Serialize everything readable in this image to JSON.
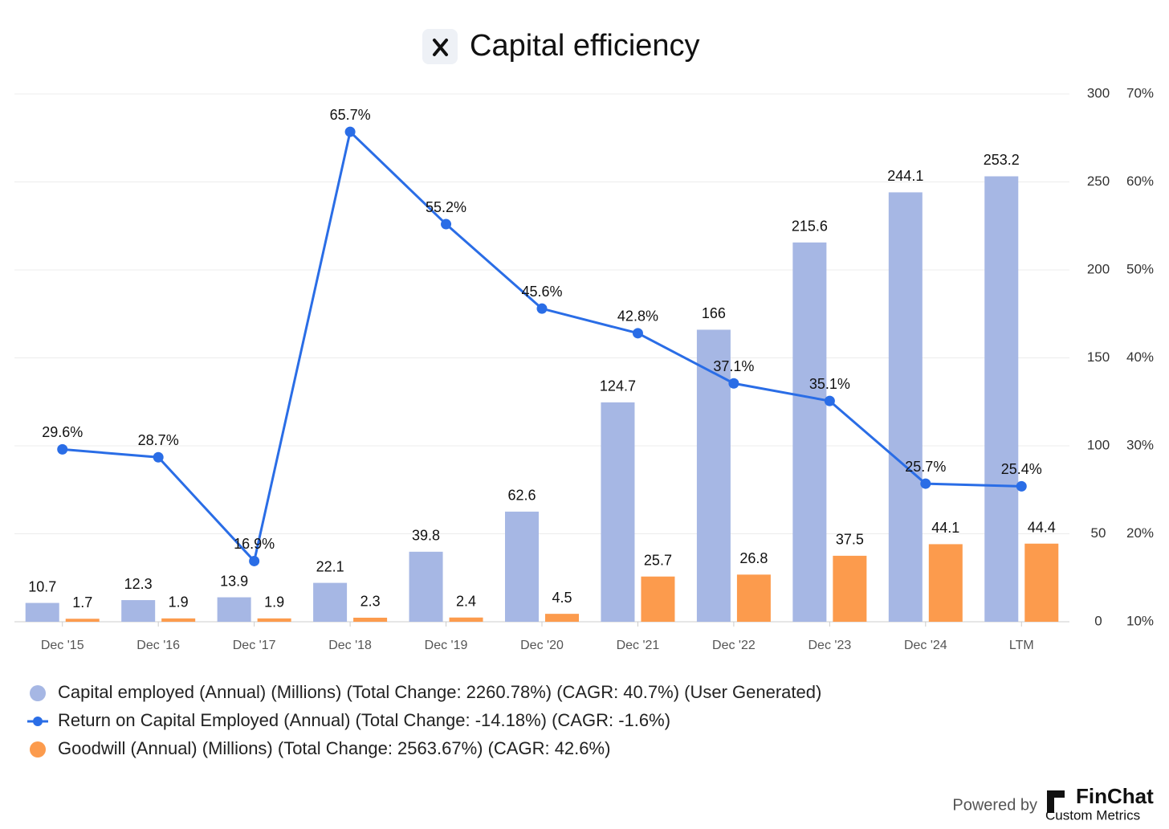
{
  "chart_data": {
    "type": "combo",
    "title": "Capital efficiency",
    "categories": [
      "Dec '15",
      "Dec '16",
      "Dec '17",
      "Dec '18",
      "Dec '19",
      "Dec '20",
      "Dec '21",
      "Dec '22",
      "Dec '23",
      "Dec '24",
      "LTM"
    ],
    "series": [
      {
        "name": "Capital employed (Annual) (Millions) (Total Change: 2260.78%) (CAGR: 40.7%) (User Generated)",
        "type": "bar",
        "color": "#a6b7e4",
        "values": [
          10.7,
          12.3,
          13.9,
          22.1,
          39.8,
          62.6,
          124.7,
          166,
          215.6,
          244.1,
          253.2
        ]
      },
      {
        "name": "Return on Capital Employed (Annual) (Total Change: -14.18%) (CAGR: -1.6%)",
        "type": "line",
        "axis": "y2",
        "color": "#2a6de6",
        "values": [
          29.6,
          28.7,
          16.9,
          65.7,
          55.2,
          45.6,
          42.8,
          37.1,
          35.1,
          25.7,
          25.4
        ],
        "value_labels": [
          "29.6%",
          "28.7%",
          "16.9%",
          "65.7%",
          "55.2%",
          "45.6%",
          "42.8%",
          "37.1%",
          "35.1%",
          "25.7%",
          "25.4%"
        ]
      },
      {
        "name": "Goodwill (Annual) (Millions) (Total Change: 2563.67%) (CAGR: 42.6%)",
        "type": "bar",
        "color": "#fc9b4d",
        "values": [
          1.7,
          1.9,
          1.9,
          2.3,
          2.4,
          4.5,
          25.7,
          26.8,
          37.5,
          44.1,
          44.4
        ]
      }
    ],
    "ylim": [
      0,
      300
    ],
    "yticks": [
      0,
      50,
      100,
      150,
      200,
      250,
      300
    ],
    "y2lim": [
      10,
      70
    ],
    "y2ticks": [
      {
        "value": 10,
        "label": "10%"
      },
      {
        "value": 20,
        "label": "20%"
      },
      {
        "value": 30,
        "label": "30%"
      },
      {
        "value": 40,
        "label": "40%"
      },
      {
        "value": 50,
        "label": "50%"
      },
      {
        "value": 60,
        "label": "60%"
      },
      {
        "value": 70,
        "label": "70%"
      }
    ],
    "grid": true
  },
  "footer": {
    "powered_by": "Powered by",
    "brand": "FinChat",
    "product": "Custom Metrics"
  }
}
